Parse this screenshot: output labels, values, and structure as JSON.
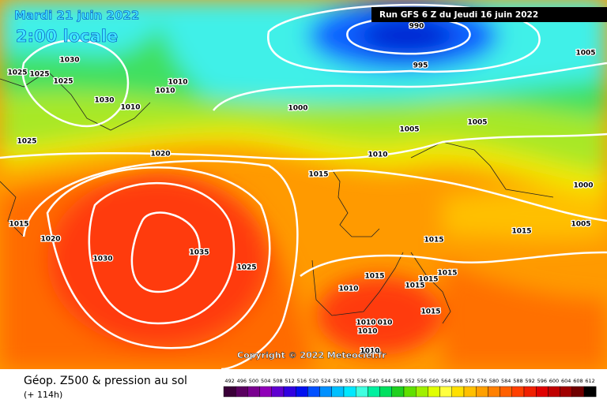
{
  "header": {
    "date": "Mardi 21 juin 2022",
    "time": "2:00 locale",
    "run": "Run GFS 6 Z du Jeudi 16 juin 2022"
  },
  "isobar_labels": [
    "990",
    "995",
    "1005",
    "1030",
    "1025",
    "1025",
    "1025",
    "1010",
    "1010",
    "1030",
    "1010",
    "1000",
    "1005",
    "1005",
    "1025",
    "1020",
    "1010",
    "1015",
    "1000",
    "1015",
    "1020",
    "1035",
    "1030",
    "1025",
    "1015",
    "1015",
    "1005",
    "1015",
    "1015",
    "1015",
    "1015",
    "1010",
    "1015",
    "1010",
    "010",
    "1010",
    "1010"
  ],
  "copyright": "Copyright © 2022 Meteociel.fr",
  "footer": {
    "title": "Géop. Z500 & pression au sol",
    "lead": "(+ 114h)"
  },
  "colorbar": {
    "ticks": [
      492,
      496,
      500,
      504,
      508,
      512,
      516,
      520,
      524,
      528,
      532,
      536,
      540,
      544,
      548,
      552,
      556,
      560,
      564,
      568,
      572,
      576,
      580,
      584,
      588,
      592,
      596,
      600,
      604,
      608,
      612
    ],
    "colors": [
      "#3a0038",
      "#5a0060",
      "#7a0090",
      "#9000b8",
      "#6000d0",
      "#3000e0",
      "#0010f0",
      "#0050ff",
      "#0090ff",
      "#00c0ff",
      "#00e8ff",
      "#40ffe0",
      "#00f0a0",
      "#00e060",
      "#20d020",
      "#60e000",
      "#a0f000",
      "#e0ff00",
      "#ffff40",
      "#ffe000",
      "#ffc000",
      "#ffa000",
      "#ff8000",
      "#ff6000",
      "#ff4000",
      "#f02000",
      "#e00000",
      "#c00000",
      "#a00000",
      "#700000",
      "#000000"
    ]
  }
}
